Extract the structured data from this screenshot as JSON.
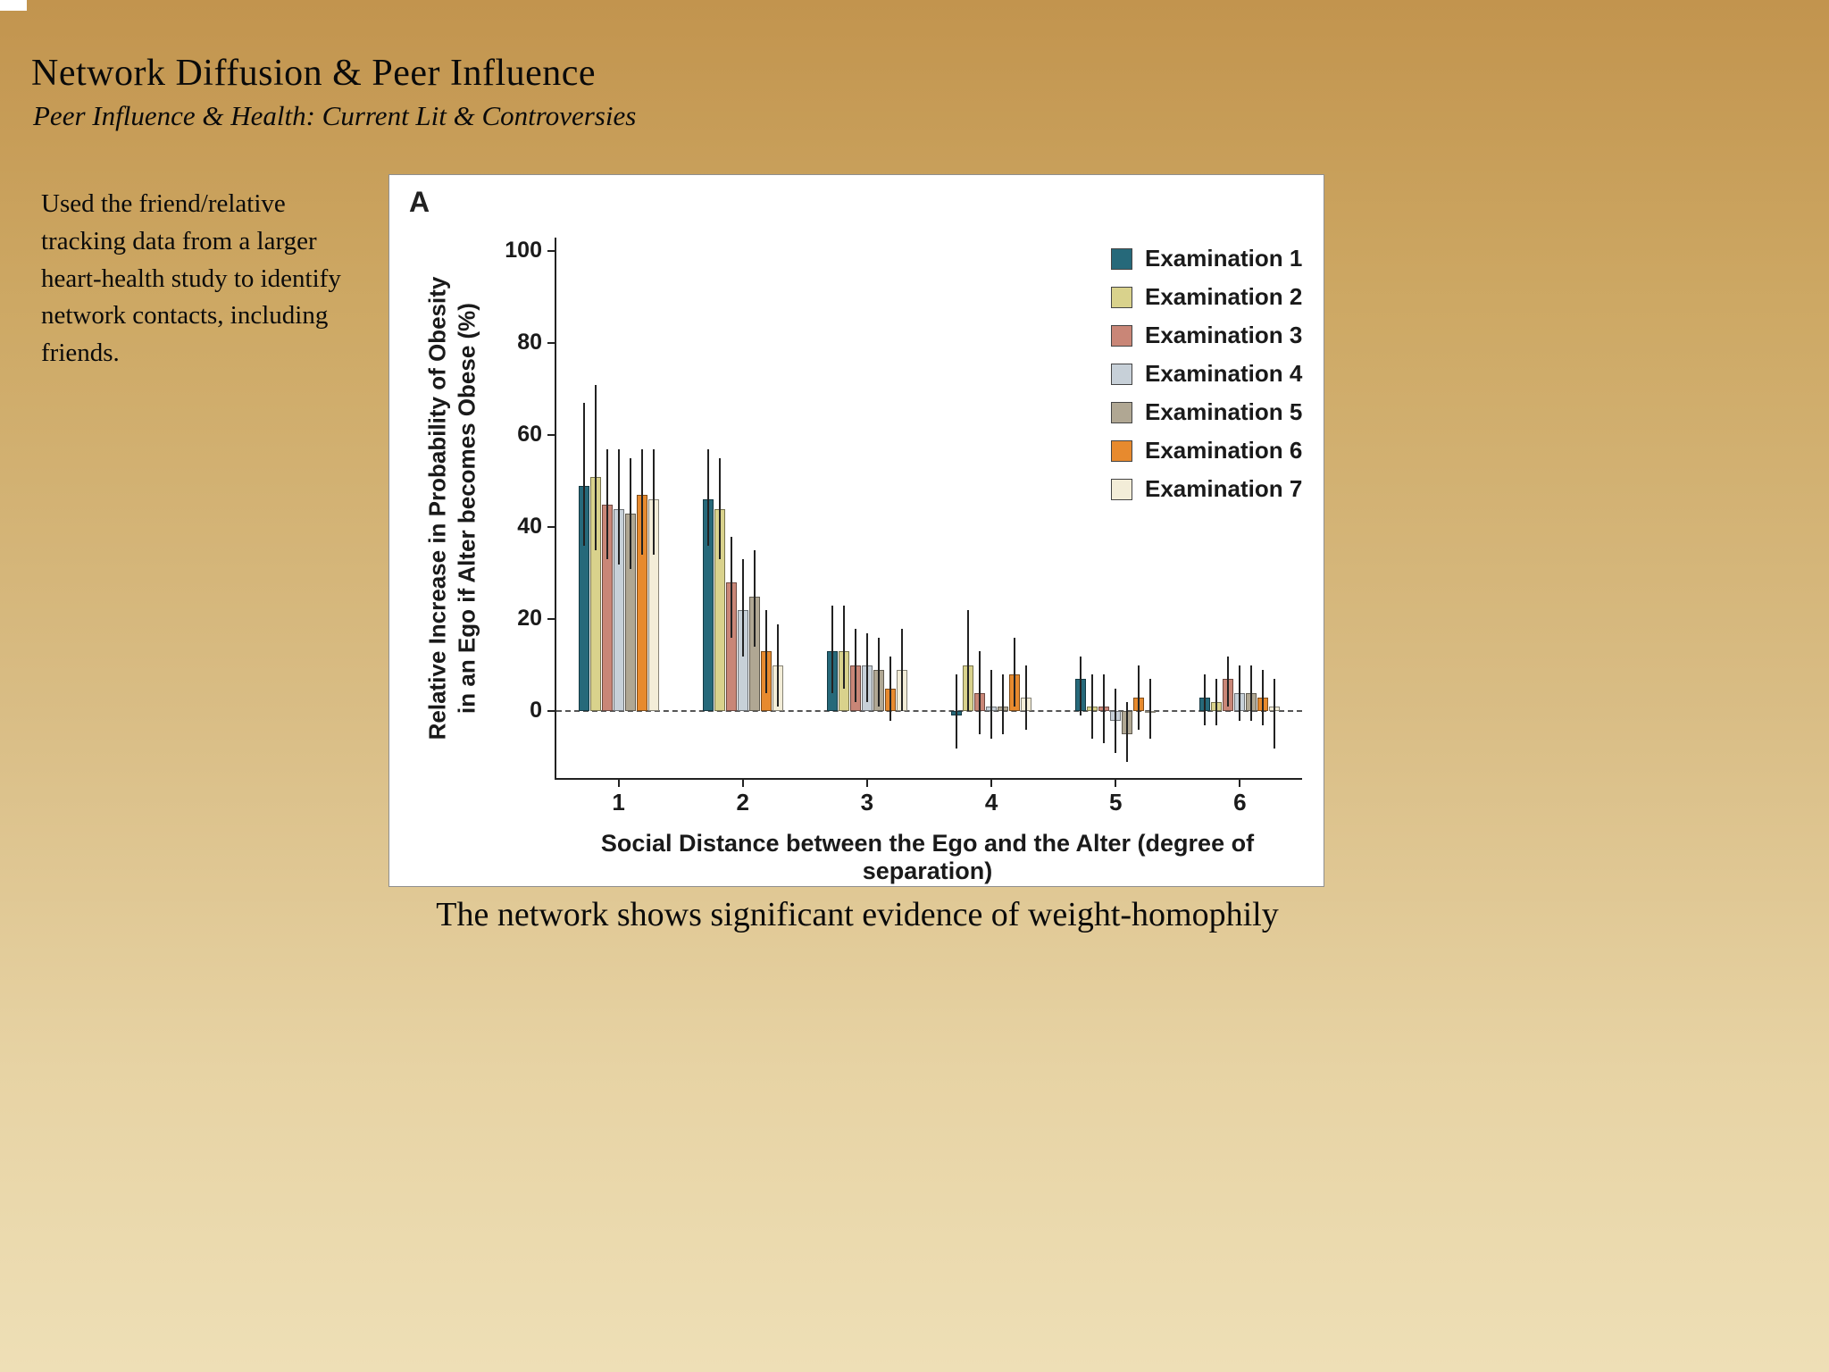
{
  "slide": {
    "title": "Network Diffusion & Peer Influence",
    "subtitle": "Peer Influence & Health: Current Lit & Controversies",
    "body_text": "Used the friend/relative tracking data from a larger heart-health study to identify network contacts, including friends.",
    "caption": "The network shows significant evidence of weight-homophily"
  },
  "chart_data": {
    "type": "bar",
    "panel_label": "A",
    "title": "",
    "xlabel": "Social Distance between the Ego and the Alter (degree of separation)",
    "ylabel_line1": "Relative Increase in Probability of Obesity",
    "ylabel_line2": "in an Ego if Alter becomes Obese (%)",
    "ylim": [
      -14.5,
      103
    ],
    "yticks": [
      0,
      20,
      40,
      60,
      80,
      100
    ],
    "categories": [
      "1",
      "2",
      "3",
      "4",
      "5",
      "6"
    ],
    "zero_line": "dashed",
    "grid": false,
    "legend_position": "top-right",
    "error_bars": true,
    "series": [
      {
        "name": "Examination 1",
        "color": "#26697a",
        "values": [
          49,
          46,
          13,
          -1,
          7,
          3
        ],
        "err_high": [
          67,
          57,
          23,
          8,
          12,
          8
        ],
        "err_low": [
          36,
          36,
          4,
          -8,
          -1,
          -3
        ]
      },
      {
        "name": "Examination 2",
        "color": "#d9d28c",
        "values": [
          51,
          44,
          13,
          10,
          1,
          2
        ],
        "err_high": [
          71,
          55,
          23,
          22,
          8,
          7
        ],
        "err_low": [
          35,
          33,
          5,
          0,
          -6,
          -3
        ]
      },
      {
        "name": "Examination 3",
        "color": "#c98677",
        "values": [
          45,
          28,
          10,
          4,
          1,
          7
        ],
        "err_high": [
          57,
          38,
          18,
          13,
          8,
          12
        ],
        "err_low": [
          33,
          16,
          2,
          -5,
          -7,
          1
        ]
      },
      {
        "name": "Examination 4",
        "color": "#c7d0d8",
        "values": [
          44,
          22,
          10,
          1,
          -2,
          4
        ],
        "err_high": [
          57,
          33,
          17,
          9,
          5,
          10
        ],
        "err_low": [
          32,
          12,
          2,
          -6,
          -9,
          -2
        ]
      },
      {
        "name": "Examination 5",
        "color": "#b0a793",
        "values": [
          43,
          25,
          9,
          1,
          -5,
          4
        ],
        "err_high": [
          55,
          35,
          16,
          8,
          2,
          10
        ],
        "err_low": [
          31,
          14,
          1,
          -5,
          -11,
          -2
        ]
      },
      {
        "name": "Examination 6",
        "color": "#e78a2e",
        "values": [
          47,
          13,
          5,
          8,
          3,
          3
        ],
        "err_high": [
          57,
          22,
          12,
          16,
          10,
          9
        ],
        "err_low": [
          34,
          4,
          -2,
          1,
          -4,
          -3
        ]
      },
      {
        "name": "Examination 7",
        "color": "#f3edd8",
        "values": [
          46,
          10,
          9,
          3,
          0,
          1
        ],
        "err_high": [
          57,
          19,
          18,
          10,
          7,
          7
        ],
        "err_low": [
          34,
          1,
          0,
          -4,
          -6,
          -8
        ]
      }
    ]
  }
}
